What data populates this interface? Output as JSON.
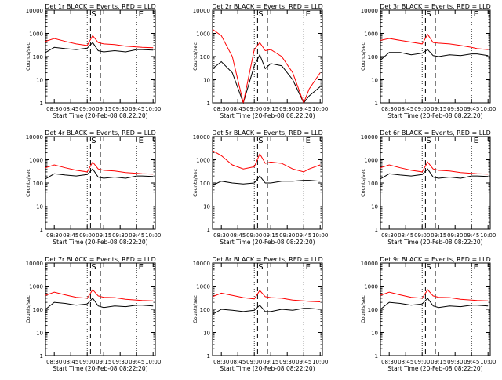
{
  "panel_title_suffix": " BLACK = Events, RED = LLD",
  "xlabel": "Start Time (20-Feb-08 08:22:20)",
  "ylabel": "Counts/sec",
  "x_ticks": [
    "08:30",
    "08:45",
    "09:00",
    "09:15",
    "09:30",
    "09:45",
    "10:00"
  ],
  "y_ticks": [
    "1",
    "10",
    "100",
    "1000",
    "10000"
  ],
  "markers": {
    "start": "S",
    "end": "E"
  },
  "colors": {
    "events": "#000000",
    "lld": "#ff0000",
    "frame": "#000000"
  },
  "chart_data": [
    {
      "type": "line",
      "title": "Det 1r",
      "xlabel": "Start Time (20-Feb-08 08:22:20)",
      "ylabel": "Counts/sec",
      "y_scale": "log",
      "ylim": [
        1,
        10000
      ],
      "xlim": [
        "08:22",
        "10:02"
      ],
      "x": [
        "08:22",
        "08:30",
        "08:40",
        "08:50",
        "09:00",
        "09:05",
        "09:10",
        "09:15",
        "09:25",
        "09:35",
        "09:45",
        "09:50",
        "10:00"
      ],
      "series": [
        {
          "name": "BLACK = Events",
          "values": [
            150,
            250,
            220,
            200,
            230,
            400,
            180,
            160,
            180,
            160,
            200,
            200,
            190
          ]
        },
        {
          "name": "RED = LLD",
          "values": [
            450,
            600,
            450,
            350,
            300,
            800,
            400,
            350,
            330,
            280,
            260,
            250,
            240
          ]
        }
      ]
    },
    {
      "type": "line",
      "title": "Det 2r",
      "xlabel": "Start Time (20-Feb-08 08:22:20)",
      "ylabel": "Counts/sec",
      "y_scale": "log",
      "ylim": [
        1,
        10000
      ],
      "xlim": [
        "08:22",
        "10:02"
      ],
      "x": [
        "08:22",
        "08:30",
        "08:40",
        "08:50",
        "09:00",
        "09:05",
        "09:10",
        "09:15",
        "09:25",
        "09:35",
        "09:45",
        "09:50",
        "10:00"
      ],
      "series": [
        {
          "name": "BLACK = Events",
          "values": [
            30,
            60,
            20,
            1,
            40,
            120,
            30,
            50,
            40,
            10,
            1,
            2,
            5
          ]
        },
        {
          "name": "RED = LLD",
          "values": [
            1500,
            800,
            100,
            1,
            200,
            400,
            180,
            200,
            100,
            20,
            1,
            4,
            20
          ]
        }
      ]
    },
    {
      "type": "line",
      "title": "Det 3r",
      "xlabel": "Start Time (20-Feb-08 08:22:20)",
      "ylabel": "Counts/sec",
      "y_scale": "log",
      "ylim": [
        1,
        10000
      ],
      "xlim": [
        "08:22",
        "10:02"
      ],
      "x": [
        "08:22",
        "08:30",
        "08:40",
        "08:50",
        "09:00",
        "09:05",
        "09:10",
        "09:15",
        "09:25",
        "09:35",
        "09:45",
        "09:50",
        "10:00"
      ],
      "series": [
        {
          "name": "BLACK = Events",
          "values": [
            70,
            150,
            150,
            120,
            140,
            200,
            110,
            100,
            120,
            110,
            130,
            130,
            110
          ]
        },
        {
          "name": "RED = LLD",
          "values": [
            500,
            600,
            500,
            420,
            350,
            900,
            400,
            380,
            350,
            300,
            250,
            220,
            200
          ]
        }
      ]
    },
    {
      "type": "line",
      "title": "Det 4r",
      "xlabel": "Start Time (20-Feb-08 08:22:20)",
      "ylabel": "Counts/sec",
      "y_scale": "log",
      "ylim": [
        1,
        10000
      ],
      "xlim": [
        "08:22",
        "10:02"
      ],
      "x": [
        "08:22",
        "08:30",
        "08:40",
        "08:50",
        "09:00",
        "09:05",
        "09:10",
        "09:15",
        "09:25",
        "09:35",
        "09:45",
        "09:50",
        "10:00"
      ],
      "series": [
        {
          "name": "BLACK = Events",
          "values": [
            150,
            250,
            220,
            200,
            230,
            400,
            180,
            160,
            180,
            160,
            200,
            200,
            190
          ]
        },
        {
          "name": "RED = LLD",
          "values": [
            450,
            600,
            450,
            350,
            300,
            800,
            400,
            350,
            330,
            280,
            260,
            250,
            240
          ]
        }
      ]
    },
    {
      "type": "line",
      "title": "Det 5r",
      "xlabel": "Start Time (20-Feb-08 08:22:20)",
      "ylabel": "Counts/sec",
      "y_scale": "log",
      "ylim": [
        1,
        10000
      ],
      "xlim": [
        "08:22",
        "10:02"
      ],
      "x": [
        "08:22",
        "08:30",
        "08:40",
        "08:50",
        "09:00",
        "09:05",
        "09:10",
        "09:15",
        "09:25",
        "09:35",
        "09:45",
        "09:50",
        "10:00"
      ],
      "series": [
        {
          "name": "BLACK = Events",
          "values": [
            80,
            120,
            100,
            90,
            100,
            200,
            100,
            100,
            120,
            120,
            130,
            130,
            120
          ]
        },
        {
          "name": "RED = LLD",
          "values": [
            2500,
            1500,
            600,
            400,
            500,
            1800,
            700,
            800,
            700,
            400,
            300,
            400,
            600
          ]
        }
      ]
    },
    {
      "type": "line",
      "title": "Det 6r",
      "xlabel": "Start Time (20-Feb-08 08:22:20)",
      "ylabel": "Counts/sec",
      "y_scale": "log",
      "ylim": [
        1,
        10000
      ],
      "xlim": [
        "08:22",
        "10:02"
      ],
      "x": [
        "08:22",
        "08:30",
        "08:40",
        "08:50",
        "09:00",
        "09:05",
        "09:10",
        "09:15",
        "09:25",
        "09:35",
        "09:45",
        "09:50",
        "10:00"
      ],
      "series": [
        {
          "name": "BLACK = Events",
          "values": [
            150,
            250,
            220,
            200,
            230,
            400,
            180,
            160,
            180,
            160,
            200,
            200,
            190
          ]
        },
        {
          "name": "RED = LLD",
          "values": [
            450,
            600,
            450,
            350,
            300,
            800,
            400,
            350,
            330,
            280,
            260,
            250,
            240
          ]
        }
      ]
    },
    {
      "type": "line",
      "title": "Det 7r",
      "xlabel": "Start Time (20-Feb-08 08:22:20)",
      "ylabel": "Counts/sec",
      "y_scale": "log",
      "ylim": [
        1,
        10000
      ],
      "xlim": [
        "08:22",
        "10:02"
      ],
      "x": [
        "08:22",
        "08:30",
        "08:40",
        "08:50",
        "09:00",
        "09:05",
        "09:10",
        "09:15",
        "09:25",
        "09:35",
        "09:45",
        "09:50",
        "10:00"
      ],
      "series": [
        {
          "name": "BLACK = Events",
          "values": [
            100,
            200,
            180,
            150,
            170,
            300,
            140,
            120,
            140,
            130,
            150,
            150,
            140
          ]
        },
        {
          "name": "RED = LLD",
          "values": [
            400,
            550,
            420,
            330,
            300,
            700,
            380,
            330,
            320,
            270,
            250,
            240,
            230
          ]
        }
      ]
    },
    {
      "type": "line",
      "title": "Det 8r",
      "xlabel": "Start Time (20-Feb-08 08:22:20)",
      "ylabel": "Counts/sec",
      "y_scale": "log",
      "ylim": [
        1,
        10000
      ],
      "xlim": [
        "08:22",
        "10:02"
      ],
      "x": [
        "08:22",
        "08:30",
        "08:40",
        "08:50",
        "09:00",
        "09:05",
        "09:10",
        "09:15",
        "09:25",
        "09:35",
        "09:45",
        "09:50",
        "10:00"
      ],
      "series": [
        {
          "name": "BLACK = Events",
          "values": [
            60,
            100,
            90,
            80,
            90,
            150,
            80,
            80,
            100,
            90,
            110,
            110,
            100
          ]
        },
        {
          "name": "RED = LLD",
          "values": [
            350,
            500,
            400,
            320,
            280,
            650,
            350,
            320,
            300,
            250,
            230,
            220,
            210
          ]
        }
      ]
    },
    {
      "type": "line",
      "title": "Det 9r",
      "xlabel": "Start Time (20-Feb-08 08:22:20)",
      "ylabel": "Counts/sec",
      "y_scale": "log",
      "ylim": [
        1,
        10000
      ],
      "xlim": [
        "08:22",
        "10:02"
      ],
      "x": [
        "08:22",
        "08:30",
        "08:40",
        "08:50",
        "09:00",
        "09:05",
        "09:10",
        "09:15",
        "09:25",
        "09:35",
        "09:45",
        "09:50",
        "10:00"
      ],
      "series": [
        {
          "name": "BLACK = Events",
          "values": [
            100,
            200,
            180,
            150,
            170,
            300,
            140,
            120,
            140,
            130,
            150,
            150,
            140
          ]
        },
        {
          "name": "RED = LLD",
          "values": [
            400,
            550,
            420,
            330,
            300,
            700,
            380,
            330,
            320,
            270,
            250,
            240,
            230
          ]
        }
      ]
    }
  ]
}
